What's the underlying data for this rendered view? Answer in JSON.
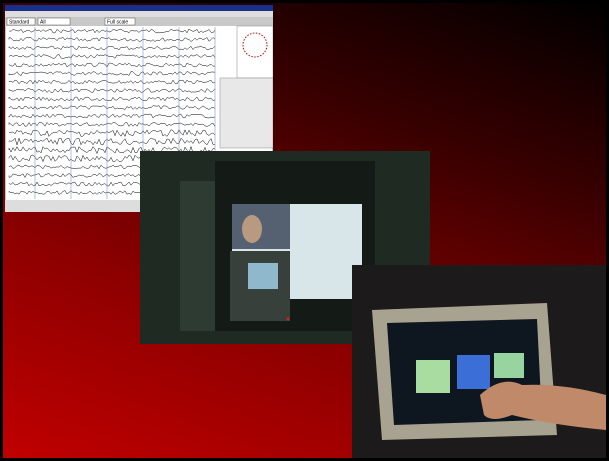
{
  "eeg_window": {
    "toolbar": [
      "Standard",
      "All",
      "Full scale"
    ]
  }
}
